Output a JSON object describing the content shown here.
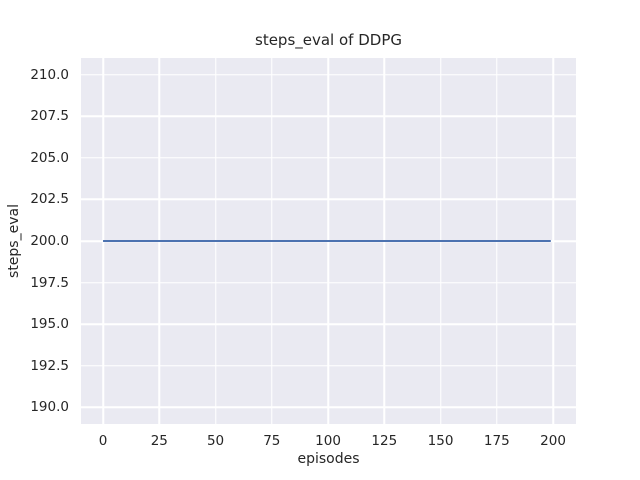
{
  "chart_data": {
    "type": "line",
    "title": "steps_eval of DDPG",
    "xlabel": "episodes",
    "ylabel": "steps_eval",
    "xlim": [
      -9.8,
      210.2
    ],
    "ylim": [
      189.0,
      211.0
    ],
    "xticks": [
      0,
      25,
      50,
      75,
      100,
      125,
      150,
      175,
      200
    ],
    "xtick_labels": [
      "0",
      "25",
      "50",
      "75",
      "100",
      "125",
      "150",
      "175",
      "200"
    ],
    "yticks": [
      190.0,
      192.5,
      195.0,
      197.5,
      200.0,
      202.5,
      205.0,
      207.5,
      210.0
    ],
    "ytick_labels": [
      "190.0",
      "192.5",
      "195.0",
      "197.5",
      "200.0",
      "202.5",
      "205.0",
      "207.5",
      "210.0"
    ],
    "grid": true,
    "legend_position": "none",
    "series": [
      {
        "name": "steps_eval",
        "note": "constant value 200 for every episode 0 through 199",
        "x": [
          0,
          199
        ],
        "y": [
          200,
          200
        ],
        "color": "#4c72b0",
        "line_width": 2
      }
    ],
    "style": {
      "figure_background": "#ffffff",
      "plot_background": "#eaeaf2",
      "grid_color": "#ffffff",
      "text_color": "#262626"
    }
  }
}
